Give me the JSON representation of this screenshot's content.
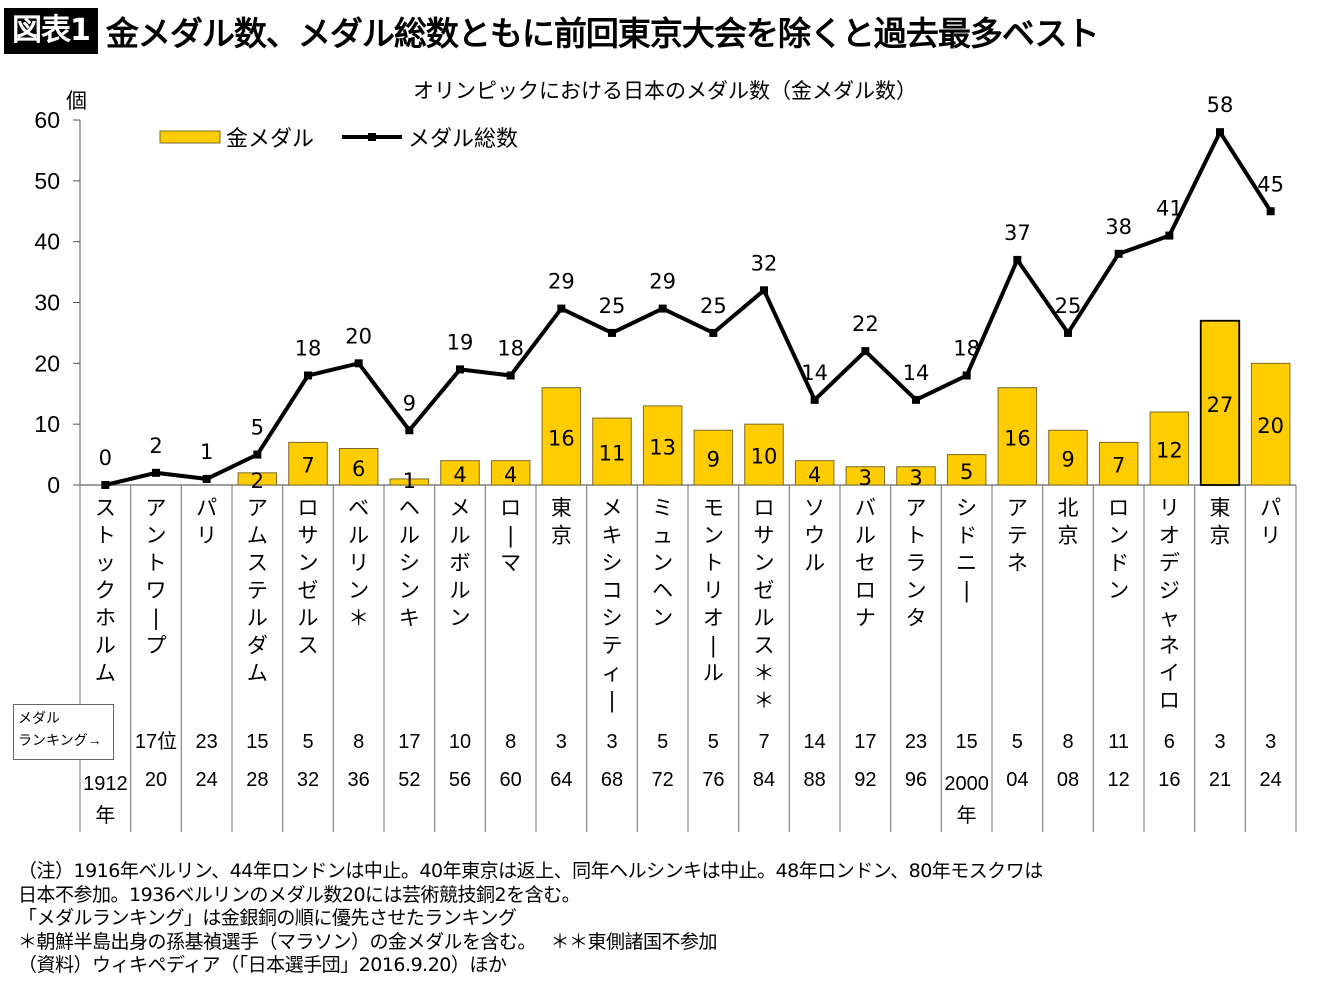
{
  "header": {
    "figure_label": "図表1",
    "headline": "金メダル数、メダル総数ともに前回東京大会を除くと過去最多ベスト"
  },
  "chart_data": {
    "type": "bar+line",
    "title": "オリンピックにおける日本のメダル数（金メダル数）",
    "ylabel": "個",
    "ylim": [
      0,
      60
    ],
    "yticks": [
      0,
      10,
      20,
      30,
      40,
      50,
      60
    ],
    "grid": false,
    "legend": {
      "placement": "top-left",
      "entries": [
        {
          "name": "金メダル",
          "type": "bar",
          "color": "#FFCC00"
        },
        {
          "name": "メダル総数",
          "type": "line",
          "color": "#000000"
        }
      ]
    },
    "categories": [
      "ストックホルム",
      "アントワープ",
      "パリ",
      "アムステルダム",
      "ロサンゼルス",
      "ベルリン＊",
      "ヘルシンキ",
      "メルボルン",
      "ローマ",
      "東京",
      "メキシコシティー",
      "ミュンヘン",
      "モントリオール",
      "ロサンゼルス＊＊",
      "ソウル",
      "バルセロナ",
      "アトランタ",
      "シドニー",
      "アテネ",
      "北京",
      "ロンドン",
      "リオデジャネイロ",
      "東京",
      "パリ"
    ],
    "years": [
      "1912年",
      "20",
      "24",
      "28",
      "32",
      "36",
      "52",
      "56",
      "60",
      "64",
      "68",
      "72",
      "76",
      "84",
      "88",
      "92",
      "96",
      "2000年",
      "04",
      "08",
      "12",
      "16",
      "21",
      "24"
    ],
    "medal_ranking": [
      "",
      "17位",
      "23",
      "15",
      "5",
      "8",
      "17",
      "10",
      "8",
      "3",
      "3",
      "5",
      "5",
      "7",
      "14",
      "17",
      "23",
      "15",
      "5",
      "8",
      "11",
      "6",
      "3",
      "3"
    ],
    "series": [
      {
        "name": "金メダル",
        "type": "bar",
        "values": [
          null,
          null,
          null,
          2,
          7,
          6,
          1,
          4,
          4,
          16,
          11,
          13,
          9,
          10,
          4,
          3,
          3,
          5,
          16,
          9,
          7,
          12,
          27,
          20
        ]
      },
      {
        "name": "メダル総数",
        "type": "line",
        "values": [
          0,
          2,
          1,
          5,
          18,
          20,
          9,
          19,
          18,
          29,
          25,
          29,
          25,
          32,
          14,
          22,
          14,
          18,
          37,
          25,
          38,
          41,
          58,
          45
        ]
      }
    ],
    "ranking_label_line1": "メダル",
    "ranking_label_line2": "ランキング→"
  },
  "notes": [
    "（注）1916年ベルリン、44年ロンドンは中止。40年東京は返上、同年ヘルシンキは中止。48年ロンドン、80年モスクワは",
    "日本不参加。1936ベルリンのメダル数20には芸術競技銅2を含む。",
    "「メダルランキング」は金銀銅の順に優先させたランキング",
    "＊朝鮮半島出身の孫基禎選手（マラソン）の金メダルを含む。　 ＊＊東側諸国不参加",
    "（資料）ウィキペディア（「日本選手団」2016.9.20）ほか"
  ]
}
